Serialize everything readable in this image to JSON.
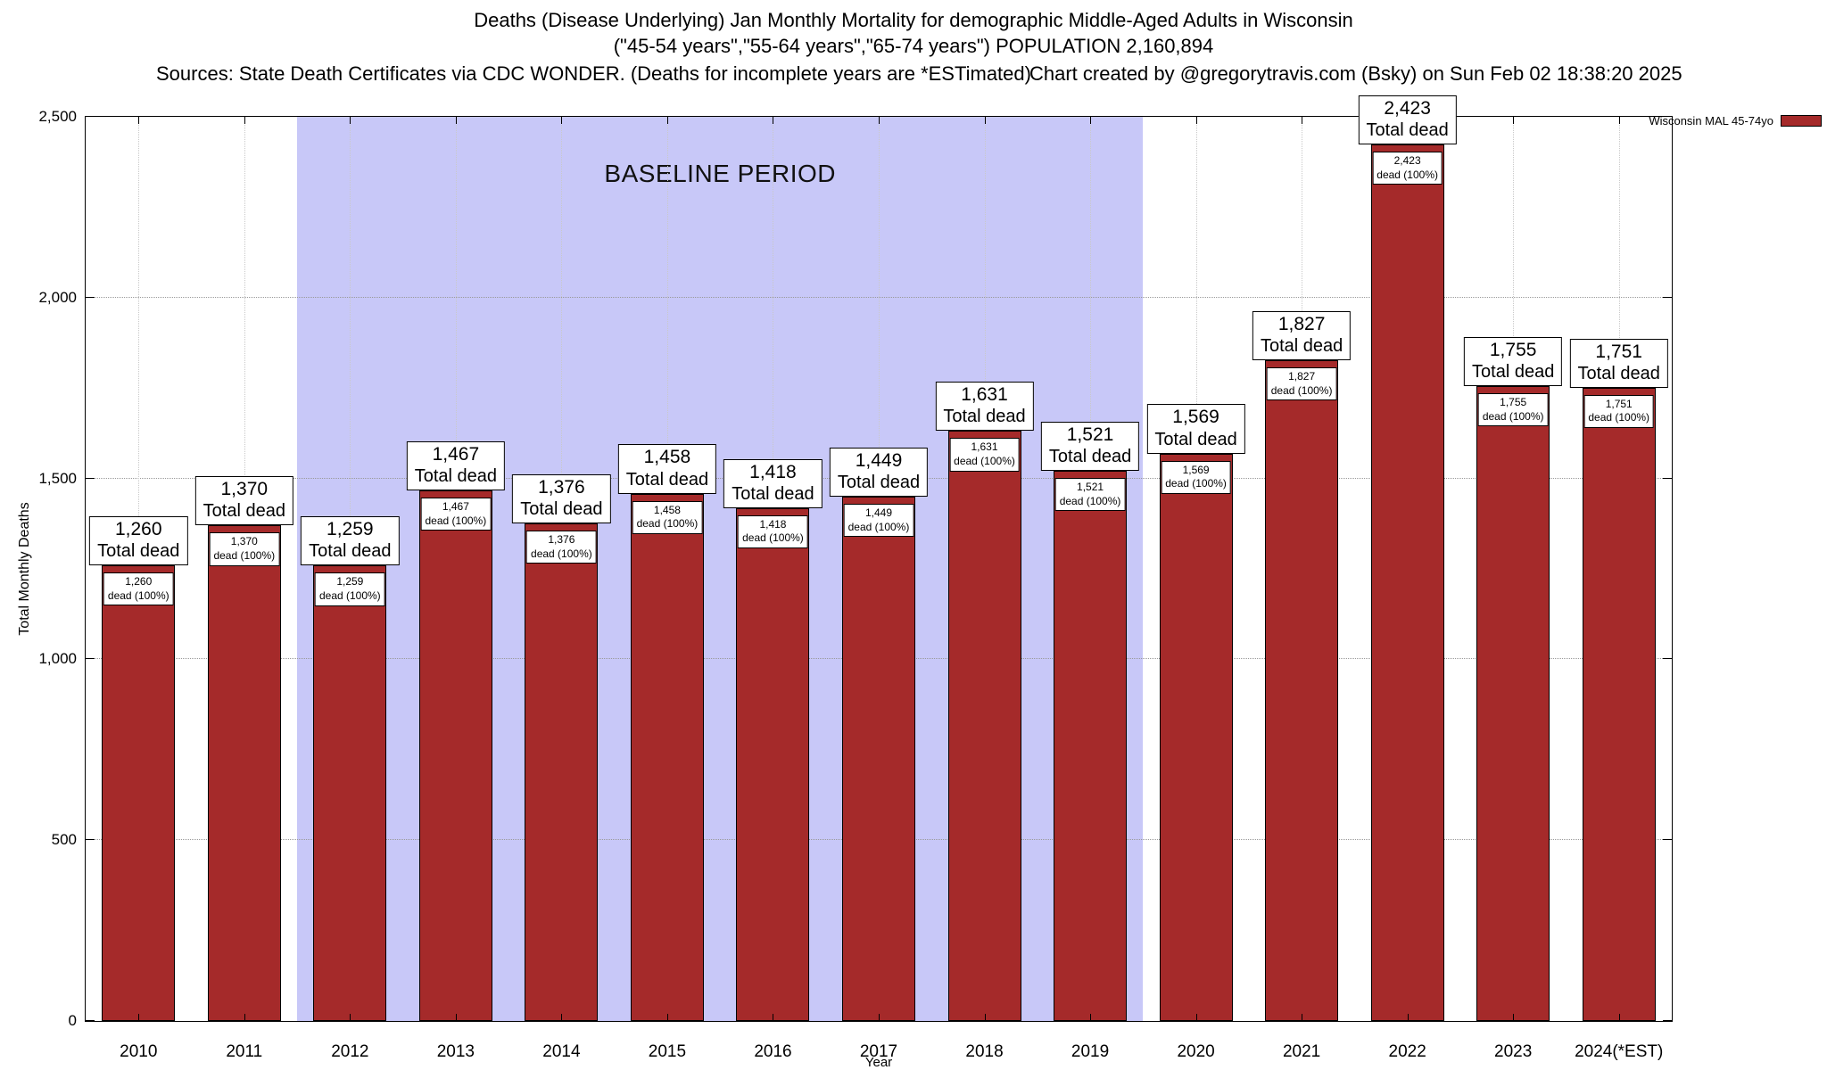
{
  "header": {
    "title": "Deaths (Disease Underlying) Jan Monthly Mortality for demographic Middle-Aged Adults in Wisconsin",
    "subtitle": "(\"45-54 years\",\"55-64 years\",\"65-74 years\") POPULATION 2,160,894",
    "sources": "Sources: State Death Certificates via CDC WONDER. (Deaths for incomplete years are *ESTimated)",
    "credit": "Chart created by @gregorytravis.com (Bsky) on Sun Feb 02 18:38:20 2025"
  },
  "legend": {
    "label": "Wisconsin MAL 45-74yo",
    "swatch_color": "#a52a2a"
  },
  "chart_data": {
    "type": "bar",
    "title": "Deaths (Disease Underlying) Jan Monthly Mortality for demographic Middle-Aged Adults in Wisconsin",
    "xlabel": "Year",
    "ylabel": "Total Monthly Deaths",
    "ylim": [
      0,
      2500
    ],
    "yticks": [
      0,
      500,
      1000,
      1500,
      2000,
      2500
    ],
    "ytick_labels": [
      "0",
      "500",
      "1,000",
      "1,500",
      "2,000",
      "2,500"
    ],
    "categories": [
      "2010",
      "2011",
      "2012",
      "2013",
      "2014",
      "2015",
      "2016",
      "2017",
      "2018",
      "2019",
      "2020",
      "2021",
      "2022",
      "2023",
      "2024(*EST)"
    ],
    "values": [
      1260,
      1370,
      1259,
      1467,
      1376,
      1458,
      1418,
      1449,
      1631,
      1521,
      1569,
      1827,
      2423,
      1755,
      1751
    ],
    "series_name": "Wisconsin MAL 45-74yo",
    "bar_color": "#a52a2a",
    "bar_border_color": "#000000",
    "grid": true,
    "legend_position": "top-right",
    "baseline_region": {
      "label": "BASELINE PERIOD",
      "start_category": "2012",
      "end_category": "2019",
      "start_index": 2,
      "end_index": 9,
      "color": "#c8c8f8"
    },
    "bar_annotations": {
      "outer_line2": "Total dead",
      "inner_line2": "dead (100%)"
    }
  }
}
